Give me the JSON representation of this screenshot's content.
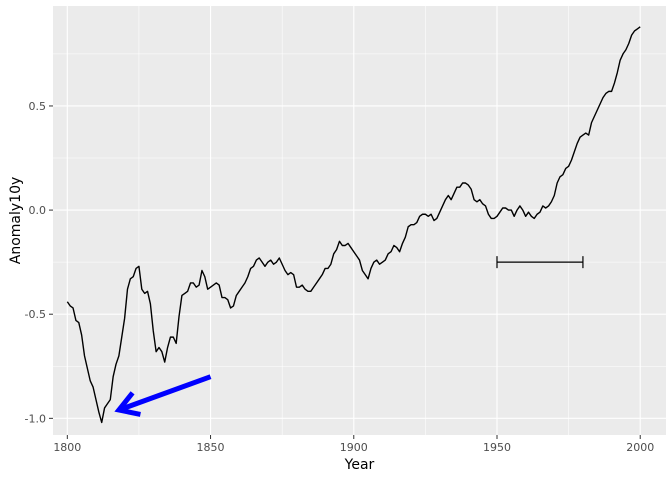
{
  "chart_data": {
    "type": "line",
    "xlabel": "Year",
    "ylabel": "Anomaly10y",
    "xlim": [
      1795,
      2009
    ],
    "ylim": [
      -1.08,
      0.98
    ],
    "x_ticks": [
      1800,
      1850,
      1900,
      1950,
      2000
    ],
    "x_tick_labels": [
      "1800",
      "1850",
      "1900",
      "1950",
      "2000"
    ],
    "y_ticks": [
      -1.0,
      -0.5,
      0.0,
      0.5
    ],
    "y_tick_labels": [
      "-1.0",
      "-0.5",
      "0.0",
      "0.5"
    ],
    "grid": true,
    "series": [
      {
        "color": "#000000",
        "points": [
          [
            1800,
            -0.44
          ],
          [
            1801,
            -0.46
          ],
          [
            1802,
            -0.47
          ],
          [
            1803,
            -0.53
          ],
          [
            1804,
            -0.54
          ],
          [
            1805,
            -0.6
          ],
          [
            1806,
            -0.7
          ],
          [
            1807,
            -0.76
          ],
          [
            1808,
            -0.82
          ],
          [
            1809,
            -0.85
          ],
          [
            1810,
            -0.91
          ],
          [
            1811,
            -0.97
          ],
          [
            1812,
            -1.02
          ],
          [
            1813,
            -0.95
          ],
          [
            1814,
            -0.93
          ],
          [
            1815,
            -0.91
          ],
          [
            1816,
            -0.8
          ],
          [
            1817,
            -0.74
          ],
          [
            1818,
            -0.7
          ],
          [
            1819,
            -0.61
          ],
          [
            1820,
            -0.52
          ],
          [
            1821,
            -0.38
          ],
          [
            1822,
            -0.33
          ],
          [
            1823,
            -0.32
          ],
          [
            1824,
            -0.28
          ],
          [
            1825,
            -0.27
          ],
          [
            1826,
            -0.38
          ],
          [
            1827,
            -0.4
          ],
          [
            1828,
            -0.39
          ],
          [
            1829,
            -0.45
          ],
          [
            1830,
            -0.58
          ],
          [
            1831,
            -0.68
          ],
          [
            1832,
            -0.66
          ],
          [
            1833,
            -0.68
          ],
          [
            1834,
            -0.73
          ],
          [
            1835,
            -0.66
          ],
          [
            1836,
            -0.61
          ],
          [
            1837,
            -0.61
          ],
          [
            1838,
            -0.64
          ],
          [
            1839,
            -0.51
          ],
          [
            1840,
            -0.41
          ],
          [
            1841,
            -0.4
          ],
          [
            1842,
            -0.39
          ],
          [
            1843,
            -0.35
          ],
          [
            1844,
            -0.35
          ],
          [
            1845,
            -0.37
          ],
          [
            1846,
            -0.36
          ],
          [
            1847,
            -0.29
          ],
          [
            1848,
            -0.32
          ],
          [
            1849,
            -0.38
          ],
          [
            1850,
            -0.37
          ],
          [
            1851,
            -0.36
          ],
          [
            1852,
            -0.35
          ],
          [
            1853,
            -0.36
          ],
          [
            1854,
            -0.42
          ],
          [
            1855,
            -0.42
          ],
          [
            1856,
            -0.43
          ],
          [
            1857,
            -0.47
          ],
          [
            1858,
            -0.46
          ],
          [
            1859,
            -0.41
          ],
          [
            1860,
            -0.39
          ],
          [
            1861,
            -0.37
          ],
          [
            1862,
            -0.35
          ],
          [
            1863,
            -0.32
          ],
          [
            1864,
            -0.28
          ],
          [
            1865,
            -0.27
          ],
          [
            1866,
            -0.24
          ],
          [
            1867,
            -0.23
          ],
          [
            1868,
            -0.25
          ],
          [
            1869,
            -0.27
          ],
          [
            1870,
            -0.25
          ],
          [
            1871,
            -0.24
          ],
          [
            1872,
            -0.26
          ],
          [
            1873,
            -0.25
          ],
          [
            1874,
            -0.23
          ],
          [
            1875,
            -0.26
          ],
          [
            1876,
            -0.29
          ],
          [
            1877,
            -0.31
          ],
          [
            1878,
            -0.3
          ],
          [
            1879,
            -0.31
          ],
          [
            1880,
            -0.37
          ],
          [
            1881,
            -0.37
          ],
          [
            1882,
            -0.36
          ],
          [
            1883,
            -0.38
          ],
          [
            1884,
            -0.39
          ],
          [
            1885,
            -0.39
          ],
          [
            1886,
            -0.37
          ],
          [
            1887,
            -0.35
          ],
          [
            1888,
            -0.33
          ],
          [
            1889,
            -0.31
          ],
          [
            1890,
            -0.28
          ],
          [
            1891,
            -0.28
          ],
          [
            1892,
            -0.26
          ],
          [
            1893,
            -0.21
          ],
          [
            1894,
            -0.19
          ],
          [
            1895,
            -0.15
          ],
          [
            1896,
            -0.17
          ],
          [
            1897,
            -0.17
          ],
          [
            1898,
            -0.16
          ],
          [
            1899,
            -0.18
          ],
          [
            1900,
            -0.2
          ],
          [
            1901,
            -0.22
          ],
          [
            1902,
            -0.24
          ],
          [
            1903,
            -0.29
          ],
          [
            1904,
            -0.31
          ],
          [
            1905,
            -0.33
          ],
          [
            1906,
            -0.28
          ],
          [
            1907,
            -0.25
          ],
          [
            1908,
            -0.24
          ],
          [
            1909,
            -0.26
          ],
          [
            1910,
            -0.25
          ],
          [
            1911,
            -0.24
          ],
          [
            1912,
            -0.21
          ],
          [
            1913,
            -0.2
          ],
          [
            1914,
            -0.17
          ],
          [
            1915,
            -0.18
          ],
          [
            1916,
            -0.2
          ],
          [
            1917,
            -0.16
          ],
          [
            1918,
            -0.13
          ],
          [
            1919,
            -0.08
          ],
          [
            1920,
            -0.07
          ],
          [
            1921,
            -0.07
          ],
          [
            1922,
            -0.06
          ],
          [
            1923,
            -0.03
          ],
          [
            1924,
            -0.02
          ],
          [
            1925,
            -0.02
          ],
          [
            1926,
            -0.03
          ],
          [
            1927,
            -0.02
          ],
          [
            1928,
            -0.05
          ],
          [
            1929,
            -0.04
          ],
          [
            1930,
            -0.01
          ],
          [
            1931,
            0.02
          ],
          [
            1932,
            0.05
          ],
          [
            1933,
            0.07
          ],
          [
            1934,
            0.05
          ],
          [
            1935,
            0.08
          ],
          [
            1936,
            0.11
          ],
          [
            1937,
            0.11
          ],
          [
            1938,
            0.13
          ],
          [
            1939,
            0.13
          ],
          [
            1940,
            0.12
          ],
          [
            1941,
            0.1
          ],
          [
            1942,
            0.05
          ],
          [
            1943,
            0.04
          ],
          [
            1944,
            0.05
          ],
          [
            1945,
            0.03
          ],
          [
            1946,
            0.02
          ],
          [
            1947,
            -0.02
          ],
          [
            1948,
            -0.04
          ],
          [
            1949,
            -0.04
          ],
          [
            1950,
            -0.03
          ],
          [
            1951,
            -0.01
          ],
          [
            1952,
            0.01
          ],
          [
            1953,
            0.01
          ],
          [
            1954,
            0.0
          ],
          [
            1955,
            0.0
          ],
          [
            1956,
            -0.03
          ],
          [
            1957,
            0.0
          ],
          [
            1958,
            0.02
          ],
          [
            1959,
            0.0
          ],
          [
            1960,
            -0.03
          ],
          [
            1961,
            -0.01
          ],
          [
            1962,
            -0.03
          ],
          [
            1963,
            -0.04
          ],
          [
            1964,
            -0.02
          ],
          [
            1965,
            -0.01
          ],
          [
            1966,
            0.02
          ],
          [
            1967,
            0.01
          ],
          [
            1968,
            0.02
          ],
          [
            1969,
            0.04
          ],
          [
            1970,
            0.07
          ],
          [
            1971,
            0.13
          ],
          [
            1972,
            0.16
          ],
          [
            1973,
            0.17
          ],
          [
            1974,
            0.2
          ],
          [
            1975,
            0.21
          ],
          [
            1976,
            0.24
          ],
          [
            1977,
            0.28
          ],
          [
            1978,
            0.32
          ],
          [
            1979,
            0.35
          ],
          [
            1980,
            0.36
          ],
          [
            1981,
            0.37
          ],
          [
            1982,
            0.36
          ],
          [
            1983,
            0.42
          ],
          [
            1984,
            0.45
          ],
          [
            1985,
            0.48
          ],
          [
            1986,
            0.51
          ],
          [
            1987,
            0.54
          ],
          [
            1988,
            0.56
          ],
          [
            1989,
            0.57
          ],
          [
            1990,
            0.57
          ],
          [
            1991,
            0.61
          ],
          [
            1992,
            0.66
          ],
          [
            1993,
            0.72
          ],
          [
            1994,
            0.75
          ],
          [
            1995,
            0.77
          ],
          [
            1996,
            0.8
          ],
          [
            1997,
            0.84
          ],
          [
            1998,
            0.86
          ],
          [
            1999,
            0.87
          ],
          [
            2000,
            0.88
          ]
        ]
      }
    ],
    "annotations": [
      {
        "type": "errorbar",
        "x": [
          1950,
          1980
        ],
        "y": -0.25,
        "color": "#000000"
      },
      {
        "type": "arrow",
        "from": [
          1850,
          -0.8
        ],
        "to": [
          1818,
          -0.96
        ],
        "color": "#0000ff"
      }
    ]
  }
}
